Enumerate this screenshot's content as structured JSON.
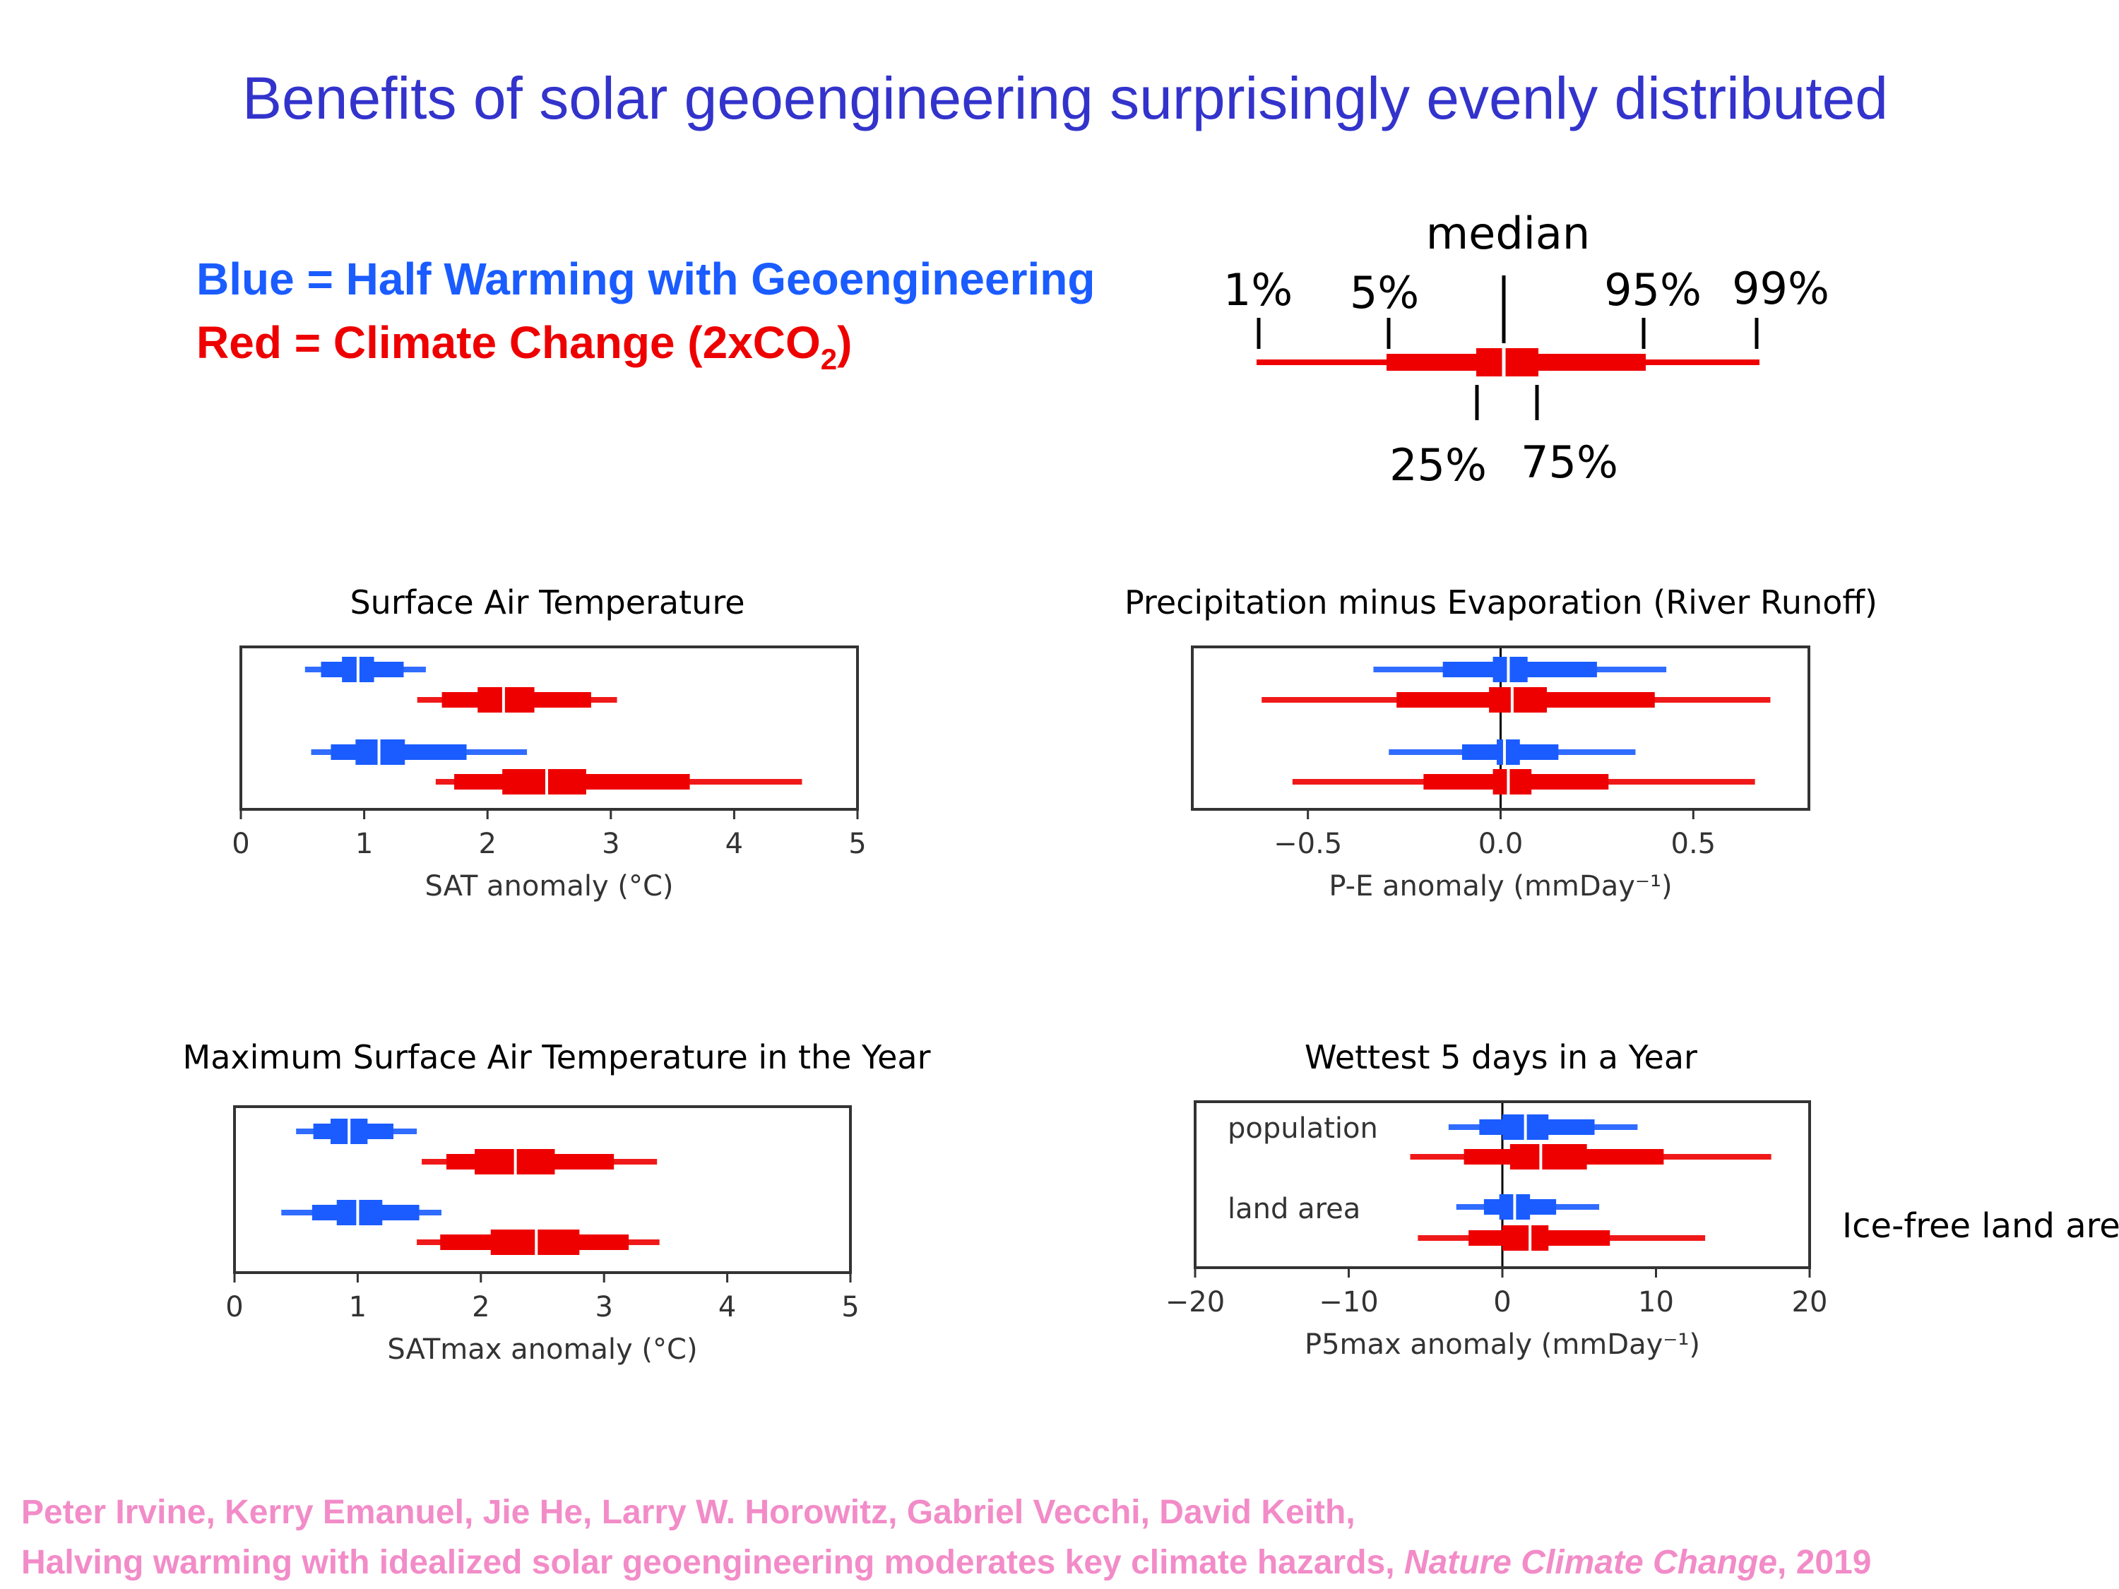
{
  "title": "Benefits of solar geoengineering surprisingly evenly distributed",
  "legend": {
    "blue_label": "Blue = Half Warming with Geoengineering",
    "red_label_main": "Red = Climate Change (2xCO",
    "red_label_sub": "2",
    "red_label_end": ")",
    "blue_color": "#1a5cff",
    "red_color": "#ee0000"
  },
  "key": {
    "median": "median",
    "p1": "1%",
    "p5": "5%",
    "p95": "95%",
    "p99": "99%",
    "p25": "25%",
    "p75": "75%"
  },
  "side_note": "Ice-free land area",
  "citation": {
    "authors": "Peter Irvine, Kerry Emanuel, Jie He, Larry W. Horowitz, Gabriel Vecchi, David Keith,",
    "paper_title": "Halving warming with idealized solar geoengineering moderates key climate hazards, ",
    "journal": "Nature Climate Change",
    "year": ", 2019"
  },
  "chart_data": [
    {
      "type": "box",
      "title": "Surface Air Temperature",
      "xlabel": "SAT anomaly (°C)",
      "xlim": [
        0,
        5
      ],
      "ticks": [
        0,
        1,
        2,
        3,
        4,
        5
      ],
      "tick_labels": [
        "0",
        "1",
        "2",
        "3",
        "4",
        "5"
      ],
      "zero_line": false,
      "row_labels": [],
      "series": [
        {
          "color": "blue",
          "p1": 0.52,
          "p5": 0.65,
          "p25": 0.82,
          "median": 0.95,
          "p75": 1.08,
          "p95": 1.32,
          "p99": 1.5
        },
        {
          "color": "red",
          "p1": 1.43,
          "p5": 1.63,
          "p25": 1.92,
          "median": 2.13,
          "p75": 2.38,
          "p95": 2.84,
          "p99": 3.05
        },
        {
          "color": "blue",
          "p1": 0.57,
          "p5": 0.73,
          "p25": 0.93,
          "median": 1.12,
          "p75": 1.33,
          "p95": 1.83,
          "p99": 2.32
        },
        {
          "color": "red",
          "p1": 1.58,
          "p5": 1.73,
          "p25": 2.12,
          "median": 2.48,
          "p75": 2.8,
          "p95": 3.64,
          "p99": 4.55
        }
      ]
    },
    {
      "type": "box",
      "title": "Precipitation minus Evaporation (River Runoff)",
      "xlabel": "P-E anomaly (mmDay⁻¹)",
      "xlim": [
        -0.8,
        0.8
      ],
      "ticks": [
        -0.5,
        0.0,
        0.5
      ],
      "tick_labels": [
        "−0.5",
        "0.0",
        "0.5"
      ],
      "zero_line": true,
      "row_labels": [],
      "series": [
        {
          "color": "blue",
          "p1": -0.33,
          "p5": -0.15,
          "p25": -0.02,
          "median": 0.02,
          "p75": 0.07,
          "p95": 0.25,
          "p99": 0.43
        },
        {
          "color": "red",
          "p1": -0.62,
          "p5": -0.27,
          "p25": -0.03,
          "median": 0.03,
          "p75": 0.12,
          "p95": 0.4,
          "p99": 0.7
        },
        {
          "color": "blue",
          "p1": -0.29,
          "p5": -0.1,
          "p25": -0.01,
          "median": 0.01,
          "p75": 0.05,
          "p95": 0.15,
          "p99": 0.35
        },
        {
          "color": "red",
          "p1": -0.54,
          "p5": -0.2,
          "p25": -0.02,
          "median": 0.02,
          "p75": 0.08,
          "p95": 0.28,
          "p99": 0.66
        }
      ]
    },
    {
      "type": "box",
      "title": "Maximum Surface Air Temperature in the Year",
      "xlabel": "SATmax anomaly (°C)",
      "xlim": [
        0,
        5
      ],
      "ticks": [
        0,
        1,
        2,
        3,
        4,
        5
      ],
      "tick_labels": [
        "0",
        "1",
        "2",
        "3",
        "4",
        "5"
      ],
      "zero_line": false,
      "row_labels": [],
      "series": [
        {
          "color": "blue",
          "p1": 0.5,
          "p5": 0.64,
          "p25": 0.78,
          "median": 0.93,
          "p75": 1.08,
          "p95": 1.29,
          "p99": 1.48
        },
        {
          "color": "red",
          "p1": 1.52,
          "p5": 1.72,
          "p25": 1.95,
          "median": 2.28,
          "p75": 2.6,
          "p95": 3.08,
          "p99": 3.43
        },
        {
          "color": "blue",
          "p1": 0.38,
          "p5": 0.63,
          "p25": 0.83,
          "median": 1.0,
          "p75": 1.2,
          "p95": 1.5,
          "p99": 1.68
        },
        {
          "color": "red",
          "p1": 1.48,
          "p5": 1.67,
          "p25": 2.08,
          "median": 2.45,
          "p75": 2.8,
          "p95": 3.2,
          "p99": 3.45
        }
      ]
    },
    {
      "type": "box",
      "title": "Wettest 5 days in a Year",
      "xlabel": "P5max anomaly (mmDay⁻¹)",
      "xlim": [
        -20,
        20
      ],
      "ticks": [
        -20,
        -10,
        0,
        10,
        20
      ],
      "tick_labels": [
        "−20",
        "−10",
        "0",
        "10",
        "20"
      ],
      "zero_line": true,
      "row_labels": [
        "population",
        "land area"
      ],
      "series": [
        {
          "color": "blue",
          "p1": -3.5,
          "p5": -1.5,
          "p25": 0.0,
          "median": 1.5,
          "p75": 3.0,
          "p95": 6.0,
          "p99": 8.8
        },
        {
          "color": "red",
          "p1": -6.0,
          "p5": -2.5,
          "p25": 0.5,
          "median": 2.5,
          "p75": 5.5,
          "p95": 10.5,
          "p99": 17.5
        },
        {
          "color": "blue",
          "p1": -3.0,
          "p5": -1.2,
          "p25": -0.2,
          "median": 0.8,
          "p75": 1.8,
          "p95": 3.5,
          "p99": 6.3
        },
        {
          "color": "red",
          "p1": -5.5,
          "p5": -2.2,
          "p25": 0.0,
          "median": 1.8,
          "p75": 3.0,
          "p95": 7.0,
          "p99": 13.2
        }
      ]
    }
  ]
}
